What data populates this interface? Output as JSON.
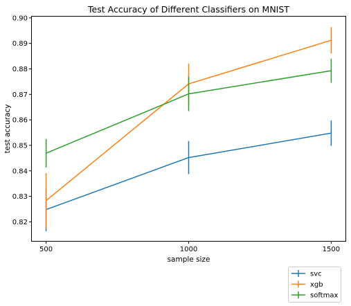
{
  "chart_data": {
    "type": "line",
    "title": "Test Accuracy of Different Classifiers on MNIST",
    "xlabel": "sample size",
    "ylabel": "test accuracy",
    "x": [
      500,
      1000,
      1500
    ],
    "x_ticks": [
      "500",
      "1000",
      "1500"
    ],
    "y_ticks": [
      "0.82",
      "0.83",
      "0.84",
      "0.85",
      "0.86",
      "0.87",
      "0.88",
      "0.89",
      "0.90"
    ],
    "xlim": [
      450,
      1550
    ],
    "ylim": [
      0.8125,
      0.9005
    ],
    "grid": false,
    "error_bars": true,
    "legend_position": "below-right",
    "series": [
      {
        "name": "svc",
        "color": "#1f77b4",
        "values": [
          0.8248,
          0.8452,
          0.8548
        ],
        "errors": [
          0.0085,
          0.0065,
          0.005
        ]
      },
      {
        "name": "xgb",
        "color": "#ff7f0e",
        "values": [
          0.8283,
          0.8741,
          0.8912
        ],
        "errors": [
          0.0108,
          0.008,
          0.0052
        ]
      },
      {
        "name": "softmax",
        "color": "#2ca02c",
        "values": [
          0.8469,
          0.8702,
          0.8793
        ],
        "errors": [
          0.0056,
          0.0068,
          0.0047
        ]
      }
    ]
  }
}
